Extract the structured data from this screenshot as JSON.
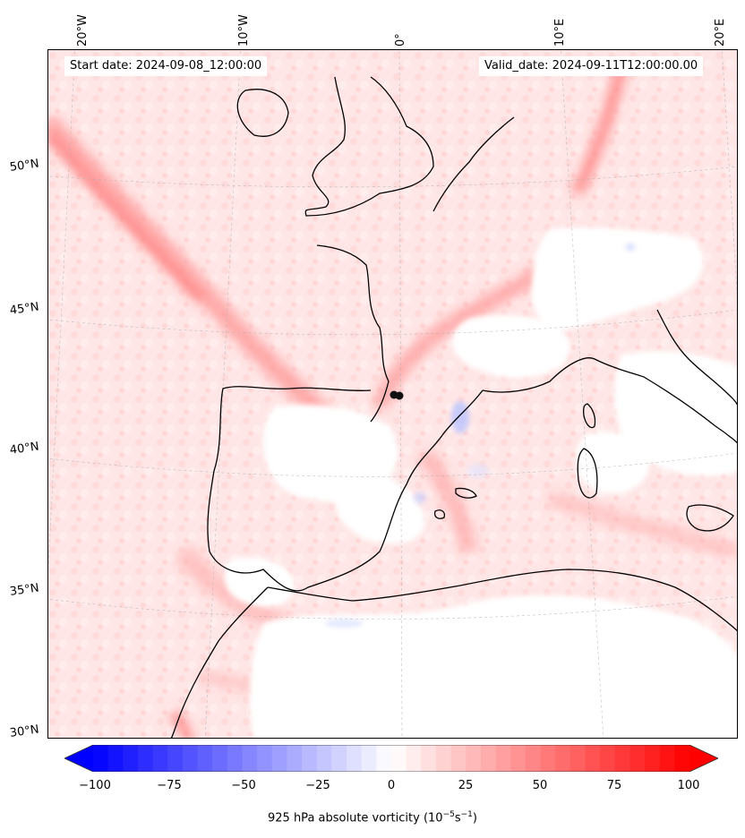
{
  "header": {
    "start_date": "Start date: 2024-09-08_12:00:00",
    "valid_date": "Valid_date: 2024-09-11T12:00:00.00"
  },
  "longitude_labels": [
    "20°W",
    "10°W",
    "0°",
    "10°E",
    "20°E"
  ],
  "latitude_labels": [
    "50°N",
    "45°N",
    "40°N",
    "35°N",
    "30°N"
  ],
  "colorbar": {
    "ticks": [
      "−100",
      "−75",
      "−50",
      "−25",
      "0",
      "25",
      "50",
      "75",
      "100"
    ],
    "min": -100,
    "max": 100,
    "low_color": "#0000ff",
    "mid_color": "#ffffff",
    "high_color": "#ff0000",
    "label_prefix": "925 hPa absolute vorticity (10",
    "label_exp1": "−5",
    "label_mid": "s",
    "label_exp2": "−1",
    "label_suffix": ")"
  },
  "map": {
    "field_name": "925 hPa absolute vorticity",
    "dominant_color": "#ffe3e3",
    "coastline_color": "#000000",
    "marker_color": "#111111"
  }
}
